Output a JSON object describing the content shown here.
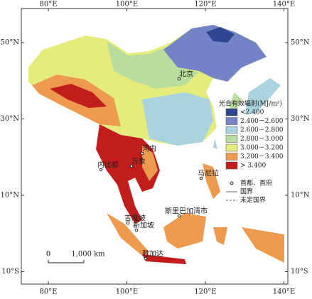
{
  "map": {
    "lon_ticks": [
      {
        "value": 80,
        "label": "80°E"
      },
      {
        "value": 100,
        "label": "100°E"
      },
      {
        "value": 120,
        "label": "120°E"
      },
      {
        "value": 140,
        "label": "140°E"
      }
    ],
    "lat_ticks": [
      {
        "value": 50,
        "label": "50°N"
      },
      {
        "value": 30,
        "label": "30°N"
      },
      {
        "value": 10,
        "label": "10°N"
      },
      {
        "value": -10,
        "label": "10°S"
      }
    ],
    "cities": [
      "北京",
      "河内",
      "万象",
      "内比都",
      "马尼拉",
      "吉隆坡",
      "新加坡",
      "斯里巴加湾市",
      "雅加达"
    ],
    "legend": {
      "title": "光合有效辐射(MJ/m²)",
      "items": [
        {
          "label": "<2.400",
          "color": "#2e4590"
        },
        {
          "label": "2.400－2.600",
          "color": "#7482c6"
        },
        {
          "label": "2.600－2.800",
          "color": "#a9d3df"
        },
        {
          "label": "2.800－3.000",
          "color": "#b9dd9c"
        },
        {
          "label": "3.000－3.200",
          "color": "#e6ec7c"
        },
        {
          "label": "3.200－3.400",
          "color": "#ee9a4e"
        },
        {
          "label": "> 3.400",
          "color": "#c21d1d"
        }
      ],
      "symbols": [
        "首都、首府",
        "国界",
        "未定国界"
      ]
    },
    "scale": {
      "start": "0",
      "end": "1,000 km"
    }
  }
}
